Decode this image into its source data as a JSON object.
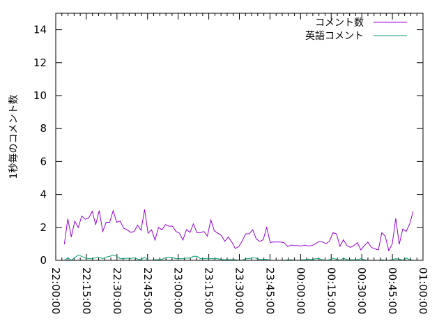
{
  "chart_data": {
    "type": "line",
    "title": "",
    "xlabel": "",
    "ylabel": "1秒毎のコメント数",
    "xlim": [
      "22:00:00",
      "01:00:00"
    ],
    "ylim": [
      0,
      15
    ],
    "x_ticks": [
      "22:00:00",
      "22:15:00",
      "22:30:00",
      "22:45:00",
      "23:00:00",
      "23:15:00",
      "23:30:00",
      "23:45:00",
      "00:00:00",
      "00:15:00",
      "00:30:00",
      "00:45:00",
      "01:00:00"
    ],
    "y_ticks": [
      "0",
      "2",
      "4",
      "6",
      "8",
      "10",
      "12",
      "14"
    ],
    "grid": false,
    "legend_position": "top-right",
    "x": [
      "22:04:12",
      "22:05:55",
      "22:07:37",
      "22:09:20",
      "22:11:02",
      "22:12:45",
      "22:14:28",
      "22:16:10",
      "22:17:53",
      "22:19:35",
      "22:21:18",
      "22:23:01",
      "22:24:43",
      "22:26:26",
      "22:28:08",
      "22:29:51",
      "22:31:34",
      "22:33:16",
      "22:34:59",
      "22:36:41",
      "22:38:24",
      "22:40:07",
      "22:41:49",
      "22:43:32",
      "22:45:14",
      "22:46:57",
      "22:48:40",
      "22:50:22",
      "22:52:05",
      "22:53:47",
      "22:55:30",
      "22:57:13",
      "22:58:55",
      "23:00:38",
      "23:02:20",
      "23:04:03",
      "23:05:46",
      "23:07:28",
      "23:09:11",
      "23:10:53",
      "23:12:36",
      "23:14:19",
      "23:16:01",
      "23:17:44",
      "23:19:26",
      "23:21:09",
      "23:22:52",
      "23:24:34",
      "23:26:17",
      "23:27:59",
      "23:29:42",
      "23:31:25",
      "23:33:07",
      "23:34:50",
      "23:36:32",
      "23:38:15",
      "23:39:58",
      "23:41:40",
      "23:43:23",
      "23:45:05",
      "23:46:48",
      "23:48:31",
      "23:50:13",
      "23:51:56",
      "23:53:38",
      "23:55:21",
      "23:57:04",
      "23:58:46",
      "00:00:29",
      "00:02:11",
      "00:03:54",
      "00:05:37",
      "00:07:19",
      "00:09:02",
      "00:10:44",
      "00:12:27",
      "00:14:10",
      "00:15:52",
      "00:17:35",
      "00:19:17",
      "00:21:00",
      "00:22:43",
      "00:24:25",
      "00:26:08",
      "00:27:50",
      "00:29:33",
      "00:31:16",
      "00:32:58",
      "00:34:41",
      "00:36:23",
      "00:38:06",
      "00:39:49",
      "00:41:31",
      "00:43:14",
      "00:44:56",
      "00:46:39",
      "00:48:22",
      "00:50:04",
      "00:51:47",
      "00:53:29",
      "00:55:12"
    ],
    "series": [
      {
        "name": "コメント数",
        "color": "#9400d3",
        "values": [
          0.97,
          2.52,
          1.42,
          2.38,
          1.99,
          2.69,
          2.49,
          2.57,
          2.97,
          2.16,
          3.02,
          1.75,
          2.31,
          2.31,
          3.02,
          2.31,
          2.38,
          1.96,
          1.85,
          1.7,
          1.75,
          2.13,
          1.82,
          3.09,
          1.65,
          1.85,
          1.23,
          2.0,
          1.85,
          2.17,
          2.07,
          2.07,
          1.75,
          1.65,
          1.23,
          1.86,
          1.7,
          2.21,
          1.68,
          1.68,
          1.75,
          1.47,
          2.45,
          1.79,
          1.65,
          1.51,
          1.15,
          1.42,
          1.11,
          0.72,
          0.83,
          1.18,
          1.61,
          1.61,
          1.86,
          1.3,
          1.15,
          1.25,
          1.99,
          1.09,
          1.11,
          1.11,
          1.11,
          1.07,
          0.83,
          0.93,
          0.9,
          0.89,
          0.87,
          0.92,
          0.87,
          0.9,
          1.01,
          1.14,
          1.11,
          1.01,
          1.16,
          1.68,
          1.61,
          0.85,
          1.25,
          0.9,
          0.79,
          0.9,
          1.08,
          0.63,
          0.9,
          1.11,
          0.79,
          0.7,
          0.63,
          1.68,
          1.45,
          0.59,
          1.0,
          2.55,
          0.97,
          1.9,
          1.76,
          2.21,
          2.98
        ]
      },
      {
        "name": "英語コメント",
        "color": "#009e73",
        "values": [
          0,
          0.16,
          0,
          0.16,
          0.32,
          0.24,
          0.13,
          0.1,
          0.1,
          0.16,
          0.18,
          0.1,
          0.2,
          0.24,
          0.32,
          0.24,
          0.1,
          0.1,
          0.13,
          0.1,
          0.16,
          0.07,
          0.04,
          0.2,
          0.01,
          0,
          0.04,
          0.04,
          0.06,
          0.16,
          0.2,
          0.17,
          0.1,
          0.1,
          0.1,
          0.13,
          0.13,
          0.24,
          0.24,
          0.1,
          0.1,
          0.1,
          0.1,
          0.1,
          0.1,
          0.04,
          0.04,
          0.04,
          0.04,
          0.04,
          0,
          0.01,
          0.1,
          0.1,
          0.16,
          0.13,
          0.04,
          0.06,
          0.06,
          0,
          0,
          0,
          0,
          0,
          0.03,
          0.03,
          0,
          0,
          0.03,
          0.03,
          0.07,
          0.04,
          0.1,
          0.1,
          0.03,
          0,
          0.03,
          0.13,
          0.06,
          0,
          0.13,
          0.04,
          0.03,
          0.03,
          0.03,
          0.1,
          0.03,
          0,
          0,
          0,
          0,
          0.03,
          0,
          0,
          0.04,
          0.1,
          0.07,
          0,
          0.14,
          0.04,
          0
        ]
      }
    ]
  }
}
